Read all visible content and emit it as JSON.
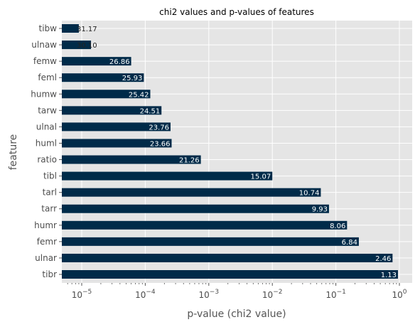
{
  "chart_data": {
    "type": "bar",
    "orientation": "horizontal",
    "title": "chi2 values and p-values of features",
    "xlabel": "p-value (chi2 value)",
    "ylabel": "feature",
    "xscale": "log",
    "xlim": [
      5e-06,
      1.5
    ],
    "xticks": [
      {
        "value": 1e-05,
        "base": "10",
        "exp": "−5"
      },
      {
        "value": 0.0001,
        "base": "10",
        "exp": "−4"
      },
      {
        "value": 0.001,
        "base": "10",
        "exp": "−3"
      },
      {
        "value": 0.01,
        "base": "10",
        "exp": "−2"
      },
      {
        "value": 0.1,
        "base": "10",
        "exp": "−1"
      },
      {
        "value": 1,
        "base": "10",
        "exp": "0"
      }
    ],
    "grid": true,
    "bar_color": "#002b49",
    "background_color": "#e5e5e5",
    "categories": [
      "tibw",
      "ulnaw",
      "femw",
      "feml",
      "humw",
      "tarw",
      "ulnal",
      "huml",
      "ratio",
      "tibl",
      "tarl",
      "tarr",
      "humr",
      "femr",
      "ulnar",
      "tibr"
    ],
    "values": [
      9e-06,
      1.4e-05,
      6e-05,
      9.5e-05,
      0.00012,
      0.00018,
      0.00025,
      0.00026,
      0.00075,
      0.01,
      0.058,
      0.078,
      0.15,
      0.23,
      0.78,
      0.95
    ],
    "bar_labels": [
      "31.17",
      "30.10",
      "26.86",
      "25.93",
      "25.42",
      "24.51",
      "23.76",
      "23.66",
      "21.26",
      "15.07",
      "10.74",
      "9.93",
      "8.06",
      "6.84",
      "2.46",
      "1.13"
    ]
  }
}
